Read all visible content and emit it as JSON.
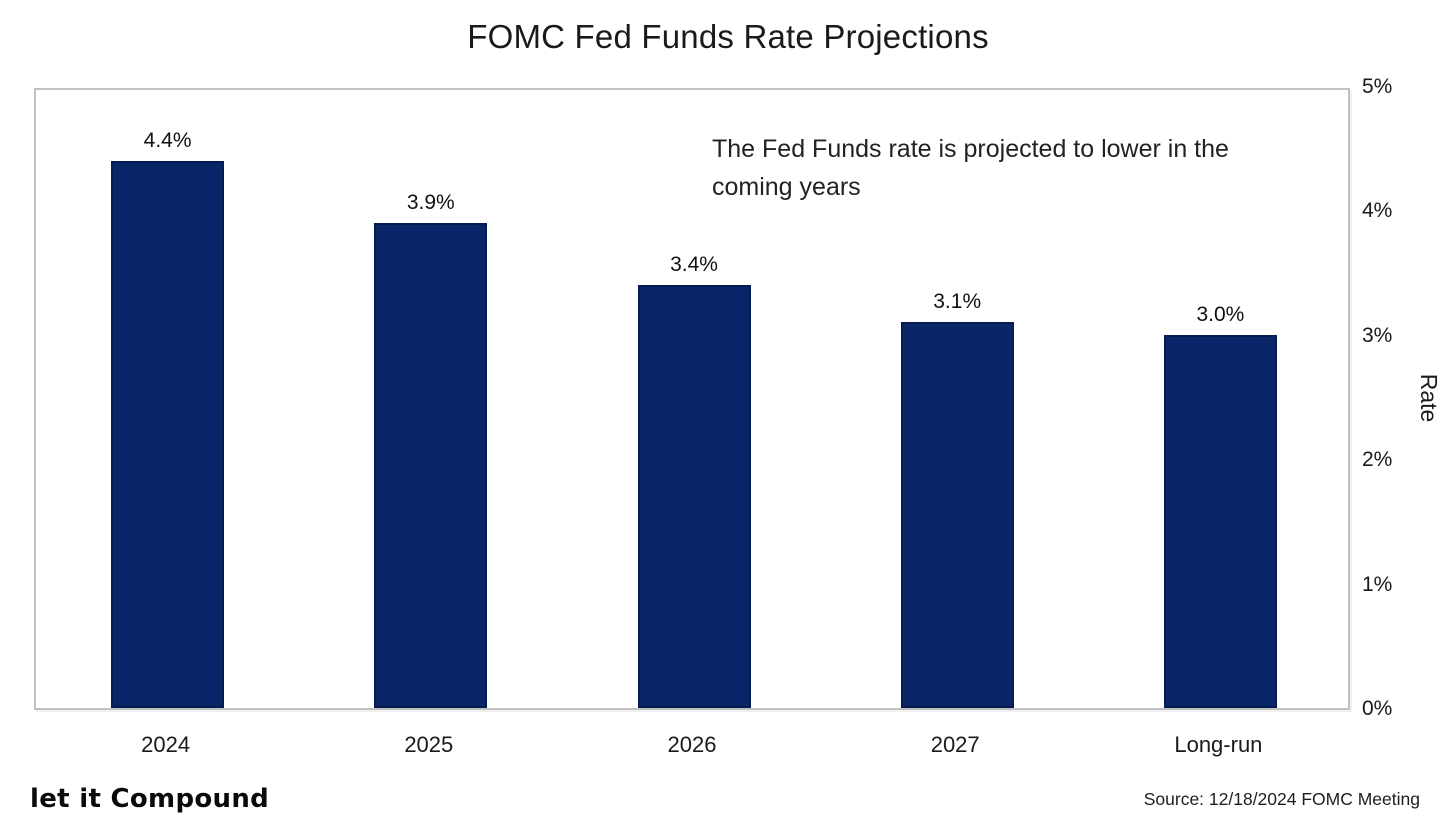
{
  "footer": {
    "logo_text": "let it Compound",
    "source_text": "Source: 12/18/2024 FOMC Meeting"
  },
  "chart_data": {
    "type": "bar",
    "title": "FOMC Fed Funds Rate Projections",
    "annotation": "The Fed Funds rate is projected to lower in the coming years",
    "categories": [
      "2024",
      "2025",
      "2026",
      "2027",
      "Long-run"
    ],
    "values": [
      4.4,
      3.9,
      3.4,
      3.1,
      3.0
    ],
    "data_labels": [
      "4.4%",
      "3.9%",
      "3.4%",
      "3.1%",
      "3.0%"
    ],
    "xlabel": "",
    "ylabel": "Rate",
    "ylim": [
      0,
      5
    ],
    "ytick_labels": [
      "5%",
      "4%",
      "3%",
      "2%",
      "1%",
      "0%"
    ],
    "ytick_values": [
      5,
      4,
      3,
      2,
      1,
      0
    ],
    "grid": false,
    "legend": "none",
    "yaxis_side": "right",
    "bar_color": "#0a2568",
    "bar_border_color": "#051c50"
  }
}
